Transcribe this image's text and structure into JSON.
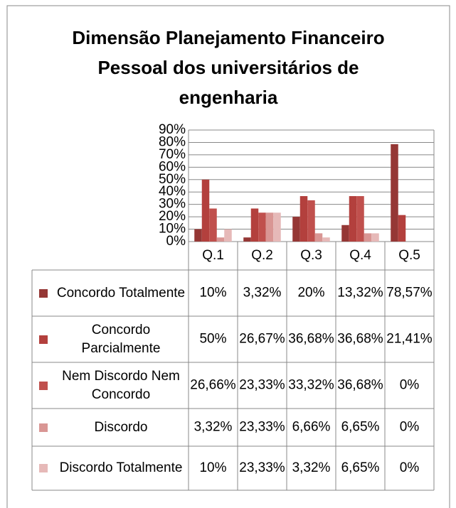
{
  "chart_data": {
    "type": "bar",
    "title_lines": [
      "Dimensão Planejamento Financeiro",
      "Pessoal dos universitários de",
      "engenharia"
    ],
    "categories": [
      "Q.1",
      "Q.2",
      "Q.3",
      "Q.4",
      "Q.5"
    ],
    "series": [
      {
        "name": "Concordo Totalmente",
        "color": "#953735",
        "values": [
          10,
          3.32,
          20,
          13.32,
          78.57
        ],
        "value_labels": [
          "10%",
          "3,32%",
          "20%",
          "13,32%",
          "78,57%"
        ]
      },
      {
        "name": "Concordo Parcialmente",
        "color": "#b3403d",
        "values": [
          50,
          26.67,
          36.68,
          36.68,
          21.41
        ],
        "value_labels": [
          "50%",
          "26,67%",
          "36,68%",
          "36,68%",
          "21,41%"
        ]
      },
      {
        "name": "Nem Discordo Nem Concordo",
        "color": "#c0504d",
        "values": [
          26.66,
          23.33,
          33.32,
          36.68,
          0
        ],
        "value_labels": [
          "26,66%",
          "23,33%",
          "33,32%",
          "36,68%",
          "0%"
        ]
      },
      {
        "name": "Discordo",
        "color": "#d99694",
        "values": [
          3.32,
          23.33,
          6.66,
          6.65,
          0
        ],
        "value_labels": [
          "3,32%",
          "23,33%",
          "6,66%",
          "6,65%",
          "0%"
        ]
      },
      {
        "name": "Discordo Totalmente",
        "color": "#e6b9b8",
        "values": [
          10,
          23.33,
          3.32,
          6.65,
          0
        ],
        "value_labels": [
          "10%",
          "23,33%",
          "3,32%",
          "6,65%",
          "0%"
        ]
      }
    ],
    "ylim": [
      0,
      90
    ],
    "yticks": [
      {
        "value": 0,
        "label": "0%"
      },
      {
        "value": 10,
        "label": "10%"
      },
      {
        "value": 20,
        "label": "20%"
      },
      {
        "value": 30,
        "label": "30%"
      },
      {
        "value": 40,
        "label": "40%"
      },
      {
        "value": 50,
        "label": "50%"
      },
      {
        "value": 60,
        "label": "60%"
      },
      {
        "value": 70,
        "label": "70%"
      },
      {
        "value": 80,
        "label": "80%"
      },
      {
        "value": 90,
        "label": "90%"
      }
    ],
    "grid": true
  }
}
